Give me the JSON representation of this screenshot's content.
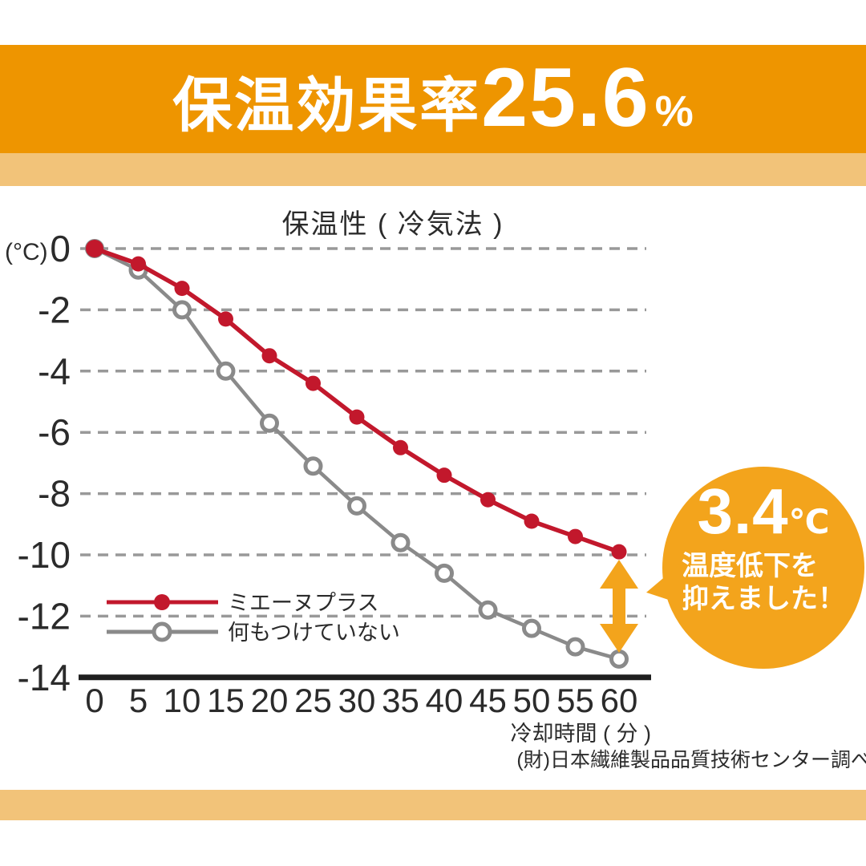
{
  "banner": {
    "title_prefix": "保温効果率",
    "title_value": "25.6",
    "title_unit": "%"
  },
  "chart_data": {
    "type": "line",
    "title": "保温性 ( 冷気法 )",
    "y_unit_label": "(°C)",
    "xlabel": "冷却時間 ( 分 )",
    "categories": [
      0,
      5,
      10,
      15,
      20,
      25,
      30,
      35,
      40,
      45,
      50,
      55,
      60
    ],
    "yticks": [
      0,
      -2,
      -4,
      -6,
      -8,
      -10,
      -12,
      -14
    ],
    "ylim": [
      -14,
      0
    ],
    "grid": "horizontal-dashed",
    "legend_position": "inside-lower-left",
    "series": [
      {
        "name": "ミエーヌプラス",
        "color": "#c2182c",
        "marker": "filled-circle",
        "values": [
          0,
          -0.5,
          -1.3,
          -2.3,
          -3.5,
          -4.4,
          -5.5,
          -6.5,
          -7.4,
          -8.2,
          -8.9,
          -9.4,
          -9.9
        ]
      },
      {
        "name": "何もつけていない",
        "color": "#8a8a8a",
        "marker": "open-circle",
        "values": [
          0,
          -0.7,
          -2.0,
          -4.0,
          -5.7,
          -7.1,
          -8.4,
          -9.6,
          -10.6,
          -11.8,
          -12.4,
          -13.0,
          -13.4
        ]
      }
    ],
    "annotation": {
      "gap_at_x": 60,
      "gap_label": "3.4℃"
    }
  },
  "callout": {
    "value": "3.4",
    "unit": "℃",
    "line1": "温度低下を",
    "line2": "抑えました！"
  },
  "source": "(財)日本繊維製品品質技術センター調べ",
  "colors": {
    "banner": "#ee9500",
    "band": "#f2c379",
    "accent": "#f3a41c",
    "red": "#c2182c",
    "gray": "#8a8a8a",
    "grid": "#999999",
    "axis": "#1f1f1f",
    "text": "#2b2b2b"
  }
}
